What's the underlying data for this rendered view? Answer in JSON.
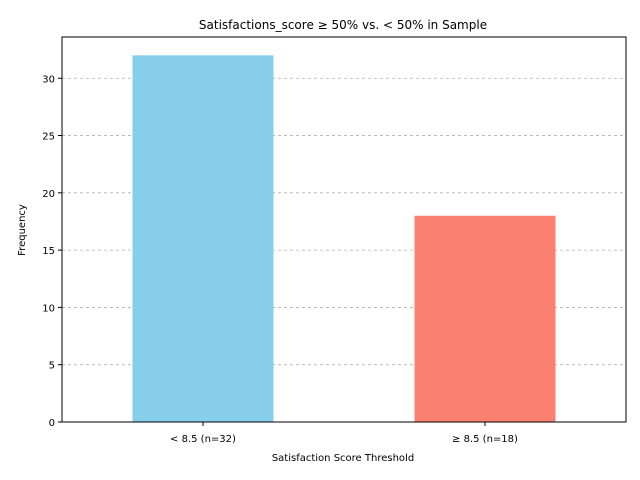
{
  "chart_data": {
    "type": "bar",
    "title": "Satisfactions_score ≥ 50%  vs. < 50% in Sample",
    "xlabel": "Satisfaction Score Threshold",
    "ylabel": "Frequency",
    "categories": [
      "< 8.5 (n=32)",
      "≥ 8.5 (n=18)"
    ],
    "values": [
      32,
      18
    ],
    "colors": [
      "#87ceeb",
      "#fa8072"
    ],
    "ylim": [
      0,
      33.6
    ],
    "yticks": [
      0,
      5,
      10,
      15,
      20,
      25,
      30
    ],
    "grid": "y-dashed",
    "legend": "none"
  }
}
